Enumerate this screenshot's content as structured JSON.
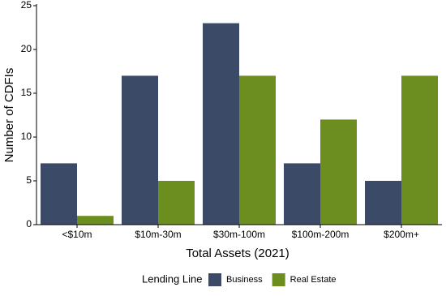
{
  "chart_data": {
    "type": "bar",
    "x_label": "Total Assets (2021)",
    "y_label": "Number of CDFIs",
    "categories": [
      "<$10m",
      "$10m-30m",
      "$30m-100m",
      "$100m-200m",
      "$200m+"
    ],
    "series": [
      {
        "name": "Business",
        "color": "#3b4a66",
        "values": [
          7,
          17,
          23,
          7,
          5
        ]
      },
      {
        "name": "Real Estate",
        "color": "#6b8e1e",
        "values": [
          1,
          5,
          17,
          12,
          17
        ]
      }
    ],
    "ylim": [
      0,
      25
    ],
    "yticks": [
      0,
      5,
      10,
      15,
      20,
      25
    ],
    "legend_title": "Lending Line",
    "legend_position": "bottom"
  }
}
